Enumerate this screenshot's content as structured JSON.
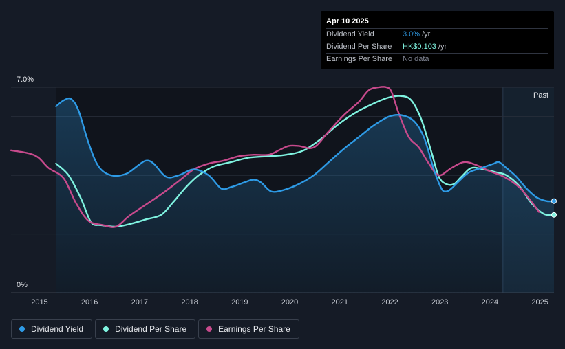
{
  "tooltip": {
    "date": "Apr 10 2025",
    "rows": [
      {
        "label": "Dividend Yield",
        "value": "3.0%",
        "unit": "/yr",
        "color": "#2e9ae5"
      },
      {
        "label": "Dividend Per Share",
        "value": "HK$0.103",
        "unit": "/yr",
        "color": "#7ff3e0"
      },
      {
        "label": "Earnings Per Share",
        "value": "No data",
        "unit": "",
        "color": "#7d8290"
      }
    ]
  },
  "legend": [
    {
      "label": "Dividend Yield",
      "color": "#2e9ae5"
    },
    {
      "label": "Dividend Per Share",
      "color": "#7ff3e0"
    },
    {
      "label": "Earnings Per Share",
      "color": "#c74a8c"
    }
  ],
  "chart_data": {
    "type": "line",
    "past_label": "Past",
    "ylim": [
      0,
      7.0
    ],
    "y_tick_labels": [
      "7.0%",
      "0%"
    ],
    "x_tick_labels": [
      "2015",
      "2016",
      "2017",
      "2018",
      "2019",
      "2020",
      "2021",
      "2022",
      "2023",
      "2024",
      "2025"
    ],
    "xlim": [
      2014.45,
      2025.3
    ],
    "forecast_start": 2024.28,
    "series": [
      {
        "name": "Dividend Yield",
        "unit": "%",
        "color": "#2e9ae5",
        "points": [
          [
            2015.35,
            6.35
          ],
          [
            2015.5,
            6.55
          ],
          [
            2015.65,
            6.6
          ],
          [
            2015.8,
            6.2
          ],
          [
            2016.0,
            5.1
          ],
          [
            2016.2,
            4.3
          ],
          [
            2016.45,
            4.0
          ],
          [
            2016.75,
            4.05
          ],
          [
            2017.0,
            4.35
          ],
          [
            2017.15,
            4.5
          ],
          [
            2017.3,
            4.4
          ],
          [
            2017.55,
            3.95
          ],
          [
            2017.8,
            4.0
          ],
          [
            2018.1,
            4.2
          ],
          [
            2018.4,
            4.0
          ],
          [
            2018.65,
            3.55
          ],
          [
            2018.85,
            3.6
          ],
          [
            2019.1,
            3.75
          ],
          [
            2019.3,
            3.85
          ],
          [
            2019.45,
            3.75
          ],
          [
            2019.65,
            3.45
          ],
          [
            2019.9,
            3.5
          ],
          [
            2020.2,
            3.7
          ],
          [
            2020.5,
            4.0
          ],
          [
            2020.8,
            4.45
          ],
          [
            2021.1,
            4.9
          ],
          [
            2021.4,
            5.3
          ],
          [
            2021.7,
            5.7
          ],
          [
            2022.0,
            6.0
          ],
          [
            2022.25,
            6.05
          ],
          [
            2022.5,
            5.85
          ],
          [
            2022.7,
            5.3
          ],
          [
            2022.9,
            4.2
          ],
          [
            2023.05,
            3.55
          ],
          [
            2023.15,
            3.45
          ],
          [
            2023.25,
            3.55
          ],
          [
            2023.4,
            3.8
          ],
          [
            2023.6,
            4.1
          ],
          [
            2023.85,
            4.25
          ],
          [
            2024.1,
            4.4
          ],
          [
            2024.2,
            4.45
          ],
          [
            2024.35,
            4.25
          ],
          [
            2024.55,
            3.95
          ],
          [
            2024.75,
            3.55
          ],
          [
            2024.95,
            3.25
          ],
          [
            2025.15,
            3.12
          ],
          [
            2025.3,
            3.12
          ]
        ]
      },
      {
        "name": "Dividend Per Share",
        "unit": "%",
        "color": "#7ff3e0",
        "points": [
          [
            2015.35,
            4.4
          ],
          [
            2015.6,
            4.0
          ],
          [
            2015.85,
            3.2
          ],
          [
            2016.05,
            2.4
          ],
          [
            2016.25,
            2.3
          ],
          [
            2016.55,
            2.25
          ],
          [
            2016.85,
            2.35
          ],
          [
            2017.15,
            2.5
          ],
          [
            2017.45,
            2.65
          ],
          [
            2017.7,
            3.1
          ],
          [
            2017.95,
            3.6
          ],
          [
            2018.2,
            4.0
          ],
          [
            2018.5,
            4.3
          ],
          [
            2018.85,
            4.45
          ],
          [
            2019.2,
            4.6
          ],
          [
            2019.6,
            4.65
          ],
          [
            2019.95,
            4.7
          ],
          [
            2020.3,
            4.85
          ],
          [
            2020.65,
            5.25
          ],
          [
            2021.0,
            5.75
          ],
          [
            2021.35,
            6.15
          ],
          [
            2021.7,
            6.45
          ],
          [
            2022.0,
            6.65
          ],
          [
            2022.25,
            6.7
          ],
          [
            2022.45,
            6.55
          ],
          [
            2022.65,
            5.9
          ],
          [
            2022.85,
            4.8
          ],
          [
            2023.0,
            3.95
          ],
          [
            2023.15,
            3.7
          ],
          [
            2023.3,
            3.7
          ],
          [
            2023.45,
            3.95
          ],
          [
            2023.65,
            4.25
          ],
          [
            2023.9,
            4.2
          ],
          [
            2024.15,
            4.1
          ],
          [
            2024.35,
            4.0
          ],
          [
            2024.6,
            3.65
          ],
          [
            2024.85,
            3.05
          ],
          [
            2025.1,
            2.68
          ],
          [
            2025.3,
            2.65
          ]
        ]
      },
      {
        "name": "Earnings Per Share",
        "unit": "%",
        "color": "#c74a8c",
        "points": [
          [
            2014.45,
            4.85
          ],
          [
            2014.8,
            4.75
          ],
          [
            2015.0,
            4.6
          ],
          [
            2015.2,
            4.25
          ],
          [
            2015.5,
            3.9
          ],
          [
            2015.75,
            3.05
          ],
          [
            2016.0,
            2.45
          ],
          [
            2016.3,
            2.3
          ],
          [
            2016.55,
            2.25
          ],
          [
            2016.8,
            2.6
          ],
          [
            2017.1,
            2.95
          ],
          [
            2017.45,
            3.35
          ],
          [
            2017.8,
            3.8
          ],
          [
            2018.1,
            4.2
          ],
          [
            2018.4,
            4.4
          ],
          [
            2018.7,
            4.5
          ],
          [
            2019.0,
            4.65
          ],
          [
            2019.3,
            4.7
          ],
          [
            2019.6,
            4.7
          ],
          [
            2019.8,
            4.85
          ],
          [
            2020.0,
            5.0
          ],
          [
            2020.2,
            5.0
          ],
          [
            2020.5,
            4.95
          ],
          [
            2020.8,
            5.5
          ],
          [
            2021.1,
            6.05
          ],
          [
            2021.4,
            6.5
          ],
          [
            2021.6,
            6.9
          ],
          [
            2021.8,
            7.0
          ],
          [
            2021.95,
            7.0
          ],
          [
            2022.05,
            6.85
          ],
          [
            2022.2,
            6.1
          ],
          [
            2022.4,
            5.3
          ],
          [
            2022.6,
            4.95
          ],
          [
            2022.8,
            4.4
          ],
          [
            2023.0,
            4.0
          ],
          [
            2023.25,
            4.25
          ],
          [
            2023.5,
            4.45
          ],
          [
            2023.75,
            4.35
          ],
          [
            2024.0,
            4.15
          ],
          [
            2024.3,
            3.95
          ],
          [
            2024.6,
            3.6
          ],
          [
            2024.85,
            3.1
          ],
          [
            2025.0,
            2.75
          ]
        ]
      }
    ]
  }
}
